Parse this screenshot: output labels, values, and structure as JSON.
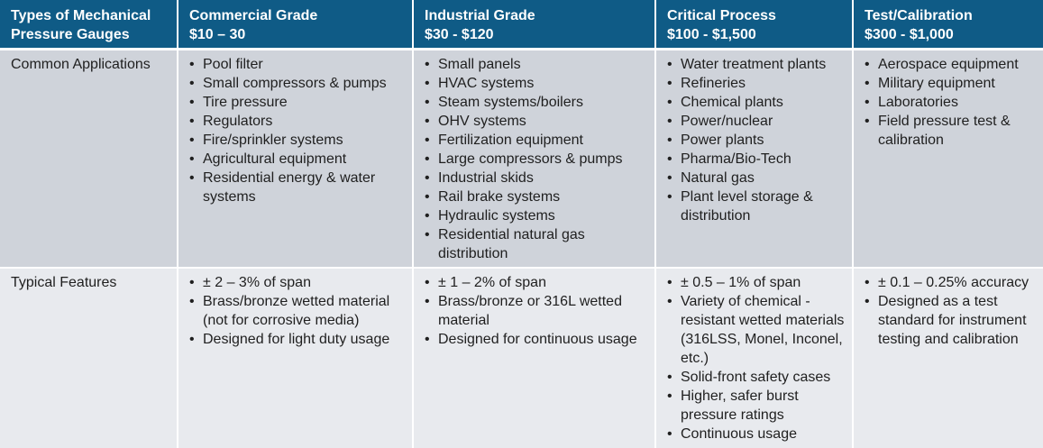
{
  "header": {
    "col0": [
      "Types of Mechanical",
      "Pressure Gauges"
    ],
    "columns": [
      {
        "title": "Commercial Grade",
        "price": "$10 – 30"
      },
      {
        "title": "Industrial Grade",
        "price": "$30 - $120"
      },
      {
        "title": "Critical Process",
        "price": "$100 - $1,500"
      },
      {
        "title": "Test/Calibration",
        "price": "$300 - $1,000"
      }
    ]
  },
  "rows": {
    "applications": {
      "label": "Common Applications",
      "commercial": [
        "Pool filter",
        "Small compressors & pumps",
        "Tire pressure",
        "Regulators",
        "Fire/sprinkler systems",
        "Agricultural equipment",
        "Residential energy & water systems"
      ],
      "industrial": [
        "Small panels",
        "HVAC systems",
        "Steam systems/boilers",
        "OHV systems",
        "Fertilization equipment",
        "Large compressors & pumps",
        "Industrial skids",
        "Rail brake systems",
        "Hydraulic systems",
        "Residential natural gas distribution"
      ],
      "critical": [
        "Water treatment plants",
        "Refineries",
        "Chemical plants",
        "Power/nuclear",
        "Power plants",
        "Pharma/Bio-Tech",
        "Natural gas",
        "Plant level storage & distribution"
      ],
      "test": [
        "Aerospace equipment",
        "Military equipment",
        "Laboratories",
        "Field pressure test & calibration"
      ]
    },
    "features": {
      "label": "Typical Features",
      "commercial": [
        "± 2 – 3% of span",
        "Brass/bronze wetted material (not for corrosive media)",
        "Designed for light duty usage"
      ],
      "industrial": [
        "± 1 – 2% of span",
        "Brass/bronze or 316L wetted material",
        "Designed for continuous usage"
      ],
      "critical": [
        "± 0.5 – 1% of span",
        "Variety of chemical -resistant wetted materials (316LSS, Monel, Inconel, etc.)",
        "Solid-front safety cases",
        "Higher, safer burst pressure ratings",
        "Continuous usage"
      ],
      "test": [
        "± 0.1 – 0.25% accuracy",
        "Designed as a test standard for instrument testing and calibration"
      ]
    }
  }
}
